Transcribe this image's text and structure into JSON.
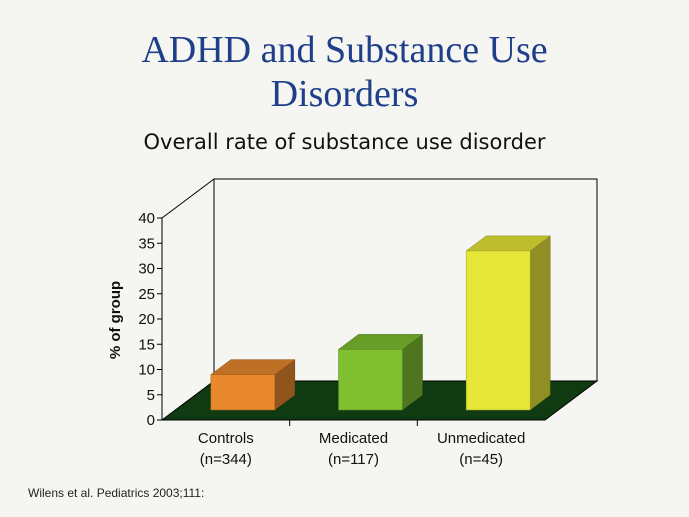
{
  "slide": {
    "title_line1": "ADHD and Substance Use",
    "title_line2": "Disorders",
    "citation": "Wilens et al. Pediatrics 2003;111:"
  },
  "chart_data": {
    "type": "bar",
    "title": "Overall rate of substance use disorder",
    "ylabel": "% of group",
    "ylim": [
      0,
      40
    ],
    "yticks": [
      0,
      5,
      10,
      15,
      20,
      25,
      30,
      35,
      40
    ],
    "categories": [
      {
        "label": "Controls",
        "sublabel": "(n=344)"
      },
      {
        "label": "Medicated",
        "sublabel": "(n=117)"
      },
      {
        "label": "Unmedicated",
        "sublabel": "(n=45)"
      }
    ],
    "values": [
      7,
      12,
      31.5
    ],
    "colors": [
      "#e8892e",
      "#7fbf30",
      "#e6e638"
    ],
    "floor_color": "#0f3a12",
    "three_d": true,
    "grid": false
  }
}
